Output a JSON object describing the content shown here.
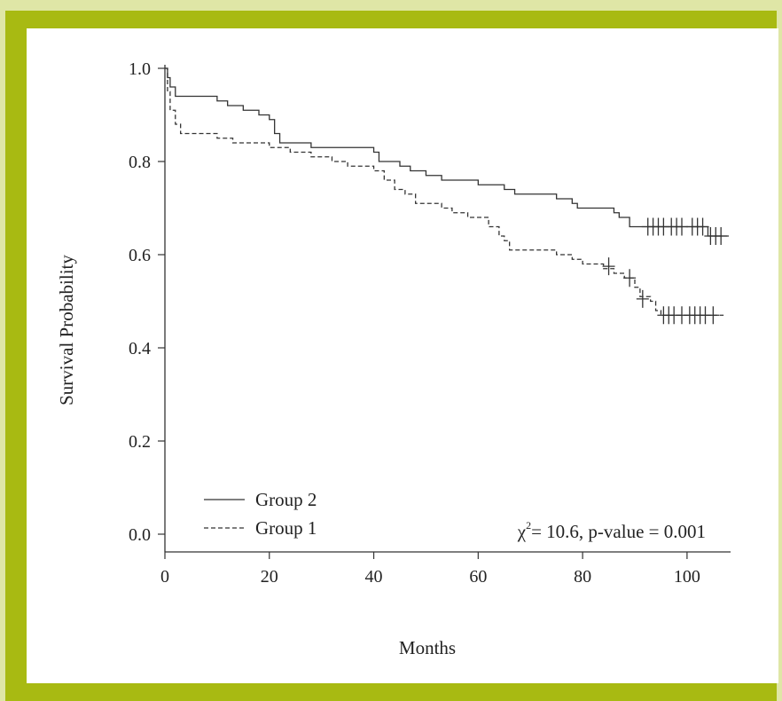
{
  "chart_data": {
    "type": "line",
    "title": "",
    "xlabel": "Months",
    "ylabel": "Survival Probability",
    "xlim": [
      0,
      110
    ],
    "ylim": [
      0,
      1.0
    ],
    "x_ticks": [
      "0",
      "20",
      "40",
      "60",
      "80",
      "100"
    ],
    "y_ticks": [
      "0.0",
      "0.2",
      "0.4",
      "0.6",
      "0.8",
      "1.0"
    ],
    "grid": false,
    "legend_position": "bottom-left",
    "annotation": "= 10.6, p-value = 0.001",
    "annotation_symbol": "χ",
    "annotation_superscript": "2",
    "series": [
      {
        "name": "Group 2",
        "style": "solid",
        "steps": [
          [
            0,
            1.0
          ],
          [
            0.5,
            0.98
          ],
          [
            1,
            0.96
          ],
          [
            2,
            0.94
          ],
          [
            10,
            0.93
          ],
          [
            12,
            0.92
          ],
          [
            15,
            0.91
          ],
          [
            18,
            0.9
          ],
          [
            20,
            0.89
          ],
          [
            21,
            0.86
          ],
          [
            22,
            0.84
          ],
          [
            28,
            0.83
          ],
          [
            40,
            0.82
          ],
          [
            41,
            0.8
          ],
          [
            45,
            0.79
          ],
          [
            47,
            0.78
          ],
          [
            50,
            0.77
          ],
          [
            53,
            0.76
          ],
          [
            60,
            0.75
          ],
          [
            65,
            0.74
          ],
          [
            67,
            0.73
          ],
          [
            75,
            0.72
          ],
          [
            78,
            0.71
          ],
          [
            79,
            0.7
          ],
          [
            86,
            0.69
          ],
          [
            87,
            0.68
          ],
          [
            89,
            0.66
          ],
          [
            104,
            0.64
          ],
          [
            108,
            0.64
          ]
        ],
        "censored": [
          [
            92.5,
            0.66
          ],
          [
            93.5,
            0.66
          ],
          [
            94.5,
            0.66
          ],
          [
            95.5,
            0.66
          ],
          [
            97,
            0.66
          ],
          [
            98,
            0.66
          ],
          [
            99,
            0.66
          ],
          [
            101,
            0.66
          ],
          [
            102,
            0.66
          ],
          [
            103,
            0.66
          ],
          [
            104.5,
            0.64
          ],
          [
            105.5,
            0.64
          ],
          [
            106.5,
            0.64
          ]
        ]
      },
      {
        "name": "Group 1",
        "style": "dashed",
        "steps": [
          [
            0,
            1.0
          ],
          [
            0.5,
            0.95
          ],
          [
            1,
            0.91
          ],
          [
            2,
            0.88
          ],
          [
            3,
            0.86
          ],
          [
            10,
            0.85
          ],
          [
            13,
            0.84
          ],
          [
            20,
            0.83
          ],
          [
            24,
            0.82
          ],
          [
            28,
            0.81
          ],
          [
            32,
            0.8
          ],
          [
            35,
            0.79
          ],
          [
            40,
            0.78
          ],
          [
            42,
            0.76
          ],
          [
            44,
            0.74
          ],
          [
            46,
            0.73
          ],
          [
            48,
            0.71
          ],
          [
            53,
            0.7
          ],
          [
            55,
            0.69
          ],
          [
            58,
            0.68
          ],
          [
            62,
            0.66
          ],
          [
            64,
            0.64
          ],
          [
            65,
            0.63
          ],
          [
            66,
            0.61
          ],
          [
            75,
            0.6
          ],
          [
            78,
            0.59
          ],
          [
            80,
            0.58
          ],
          [
            84,
            0.57
          ],
          [
            86,
            0.56
          ],
          [
            88,
            0.55
          ],
          [
            90,
            0.53
          ],
          [
            91,
            0.51
          ],
          [
            93,
            0.5
          ],
          [
            94,
            0.48
          ],
          [
            95,
            0.47
          ],
          [
            107,
            0.47
          ]
        ],
        "censored": [
          [
            85,
            0.575
          ],
          [
            89,
            0.55
          ],
          [
            91.5,
            0.505
          ],
          [
            95.5,
            0.47
          ],
          [
            96.5,
            0.47
          ],
          [
            97.5,
            0.47
          ],
          [
            99,
            0.47
          ],
          [
            100.5,
            0.47
          ],
          [
            101.5,
            0.47
          ],
          [
            102.5,
            0.47
          ],
          [
            103.5,
            0.47
          ],
          [
            105,
            0.47
          ]
        ]
      }
    ]
  }
}
